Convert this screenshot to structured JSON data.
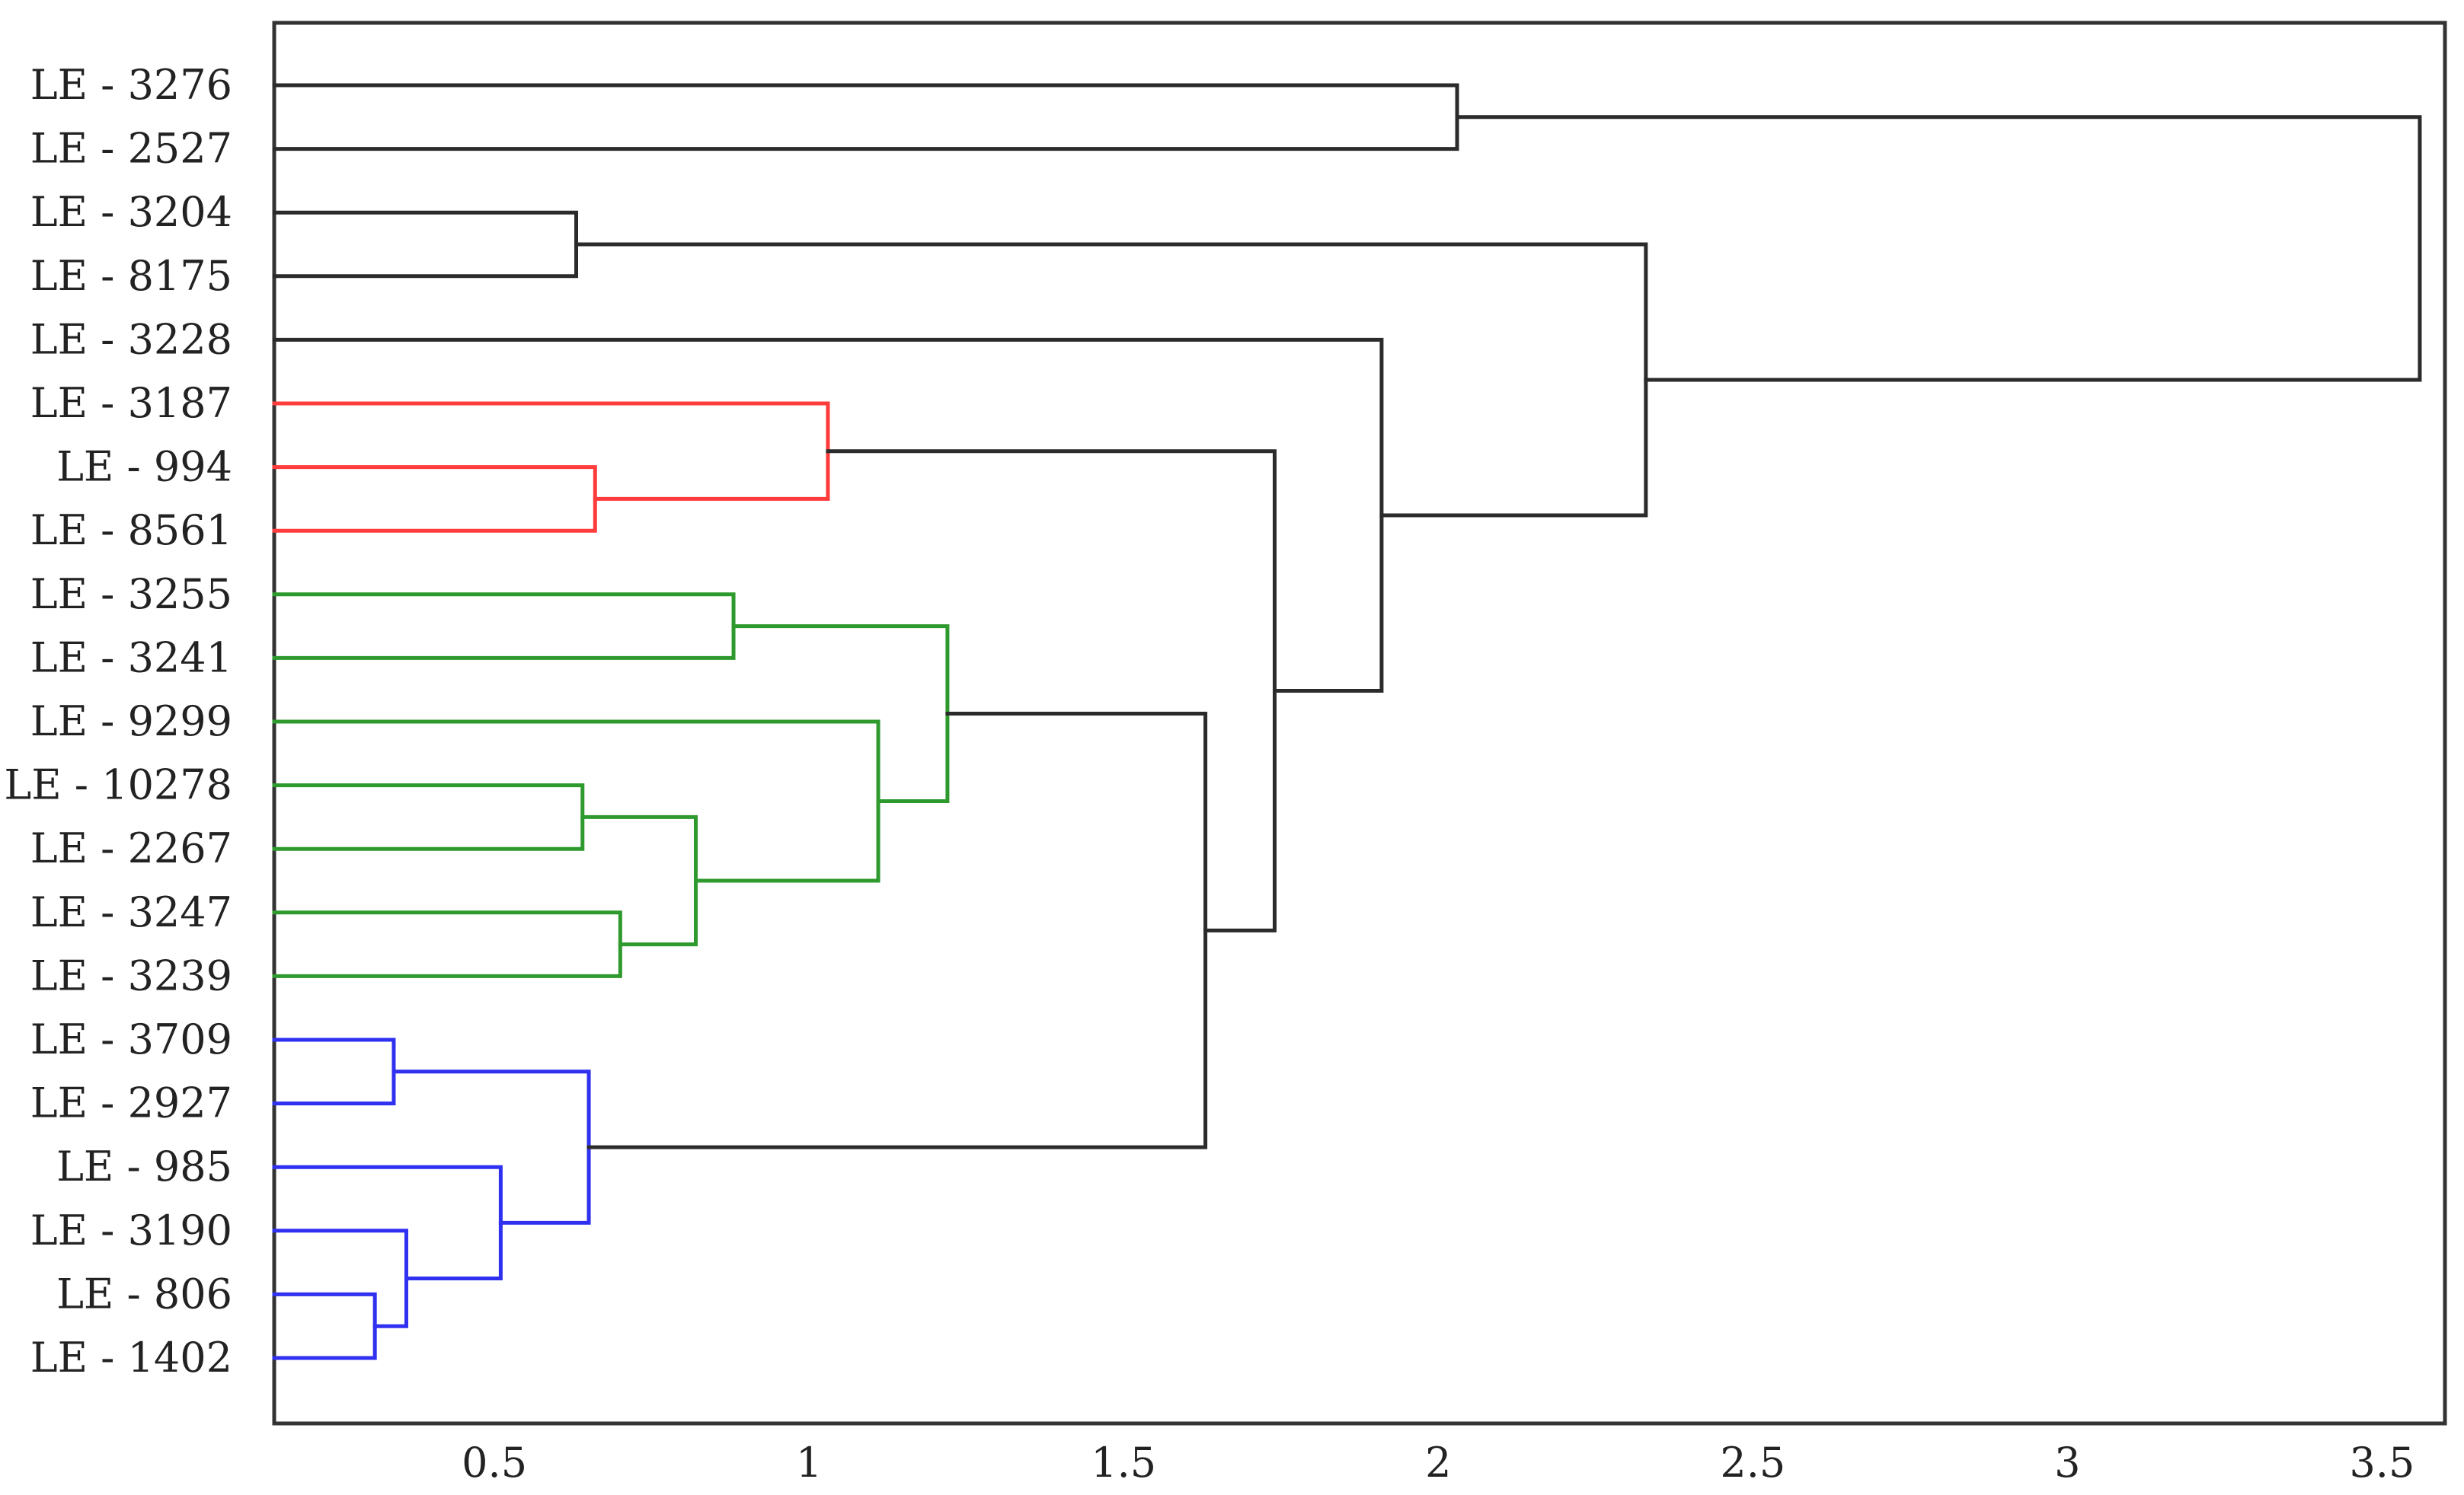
{
  "chart_data": {
    "type": "dendrogram",
    "title": "",
    "xlabel": "",
    "ylabel": "",
    "xlim": [
      0.15,
      3.6
    ],
    "x_ticks": [
      {
        "value": 0.5,
        "label": "0.5"
      },
      {
        "value": 1,
        "label": "1"
      },
      {
        "value": 1.5,
        "label": "1.5"
      },
      {
        "value": 2,
        "label": "2"
      },
      {
        "value": 2.5,
        "label": "2.5"
      },
      {
        "value": 3,
        "label": "3"
      },
      {
        "value": 3.5,
        "label": "3.5"
      }
    ],
    "grid": false,
    "leaves": [
      "LE - 3276",
      "LE - 2527",
      "LE - 3204",
      "LE - 8175",
      "LE - 3228",
      "LE - 3187",
      "LE - 994",
      "LE - 8561",
      "LE - 3255",
      "LE - 3241",
      "LE - 9299",
      "LE - 10278",
      "LE - 2267",
      "LE - 3247",
      "LE - 3239",
      "LE - 3709",
      "LE - 2927",
      "LE - 985",
      "LE - 3190",
      "LE - 806",
      "LE - 1402"
    ],
    "colors": {
      "red": "#ff3b3b",
      "green": "#2e9a2e",
      "blue": "#3030f0",
      "black": "#2b2b2b"
    },
    "merges": [
      {
        "id": "n1",
        "children": [
          "L0",
          "L1"
        ],
        "height": 2.03,
        "color": "black"
      },
      {
        "id": "n2",
        "children": [
          "L2",
          "L3"
        ],
        "height": 0.63,
        "color": "black"
      },
      {
        "id": "n3",
        "children": [
          "L6",
          "L7"
        ],
        "height": 0.66,
        "color": "red"
      },
      {
        "id": "n4",
        "children": [
          "L5",
          "n3"
        ],
        "height": 1.03,
        "color": "red"
      },
      {
        "id": "n5",
        "children": [
          "L8",
          "L9"
        ],
        "height": 0.88,
        "color": "green"
      },
      {
        "id": "n6",
        "children": [
          "L11",
          "L12"
        ],
        "height": 0.64,
        "color": "green"
      },
      {
        "id": "n7",
        "children": [
          "L13",
          "L14"
        ],
        "height": 0.7,
        "color": "green"
      },
      {
        "id": "n8",
        "children": [
          "n6",
          "n7"
        ],
        "height": 0.82,
        "color": "green"
      },
      {
        "id": "n9",
        "children": [
          "L10",
          "n8"
        ],
        "height": 1.11,
        "color": "green"
      },
      {
        "id": "n10",
        "children": [
          "n5",
          "n9"
        ],
        "height": 1.22,
        "color": "green"
      },
      {
        "id": "n11",
        "children": [
          "L15",
          "L16"
        ],
        "height": 0.34,
        "color": "blue"
      },
      {
        "id": "n12",
        "children": [
          "L19",
          "L20"
        ],
        "height": 0.31,
        "color": "blue"
      },
      {
        "id": "n13",
        "children": [
          "L18",
          "n12"
        ],
        "height": 0.36,
        "color": "blue"
      },
      {
        "id": "n14",
        "children": [
          "L17",
          "n13"
        ],
        "height": 0.51,
        "color": "blue"
      },
      {
        "id": "n15",
        "children": [
          "n11",
          "n14"
        ],
        "height": 0.65,
        "color": "blue"
      },
      {
        "id": "n16",
        "children": [
          "n10",
          "n15"
        ],
        "height": 1.63,
        "color": "black"
      },
      {
        "id": "n17",
        "children": [
          "n4",
          "n16"
        ],
        "height": 1.74,
        "color": "black"
      },
      {
        "id": "n18",
        "children": [
          "L4",
          "n17"
        ],
        "height": 1.91,
        "color": "black"
      },
      {
        "id": "n19",
        "children": [
          "n2",
          "n18"
        ],
        "height": 2.33,
        "color": "black"
      },
      {
        "id": "n20",
        "children": [
          "n1",
          "n19"
        ],
        "height": 3.56,
        "color": "black"
      }
    ]
  }
}
